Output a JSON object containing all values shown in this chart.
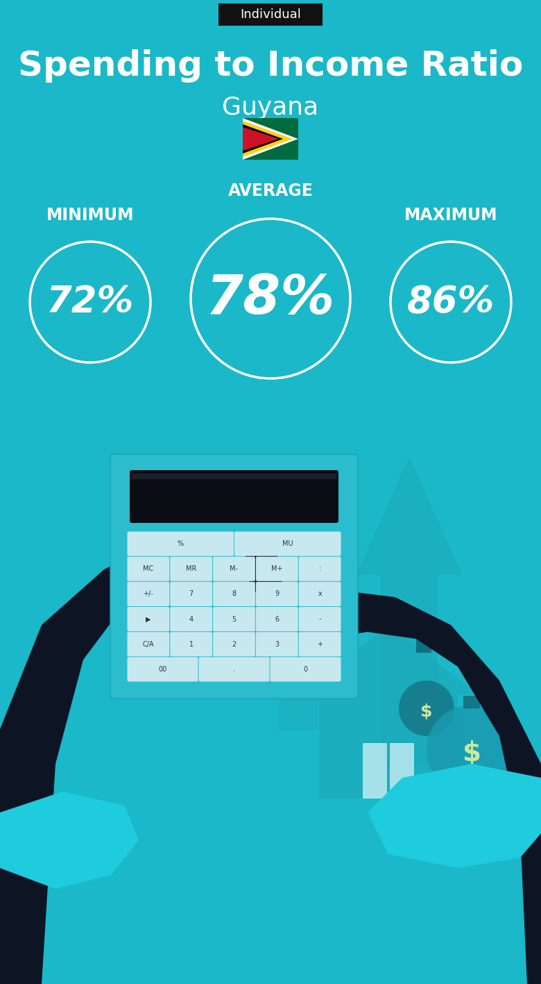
{
  "title": "Spending to Income Ratio",
  "subtitle": "Guyana",
  "tag": "Individual",
  "bg_color": "#1ab8c8",
  "tag_bg": "#111111",
  "tag_text_color": "#ffffff",
  "title_color": "#ffffff",
  "subtitle_color": "#ffffff",
  "circle_color": "#ffffff",
  "text_color": "#ffffff",
  "min_label": "MINIMUM",
  "avg_label": "AVERAGE",
  "max_label": "MAXIMUM",
  "min_value": "72%",
  "avg_value": "78%",
  "max_value": "86%",
  "figw": 7.8,
  "figh": 14.17,
  "dpi": 100,
  "arrow_color": "#1aa8b8",
  "hand_color": "#0d1525",
  "calc_body_color": "#2bbdce",
  "calc_display_color": "#0a0e14",
  "btn_color": "#c8e8f0",
  "house_color": "#1aaabb",
  "bag_color": "#1a9aaa",
  "cuff_color": "#1fccdd"
}
